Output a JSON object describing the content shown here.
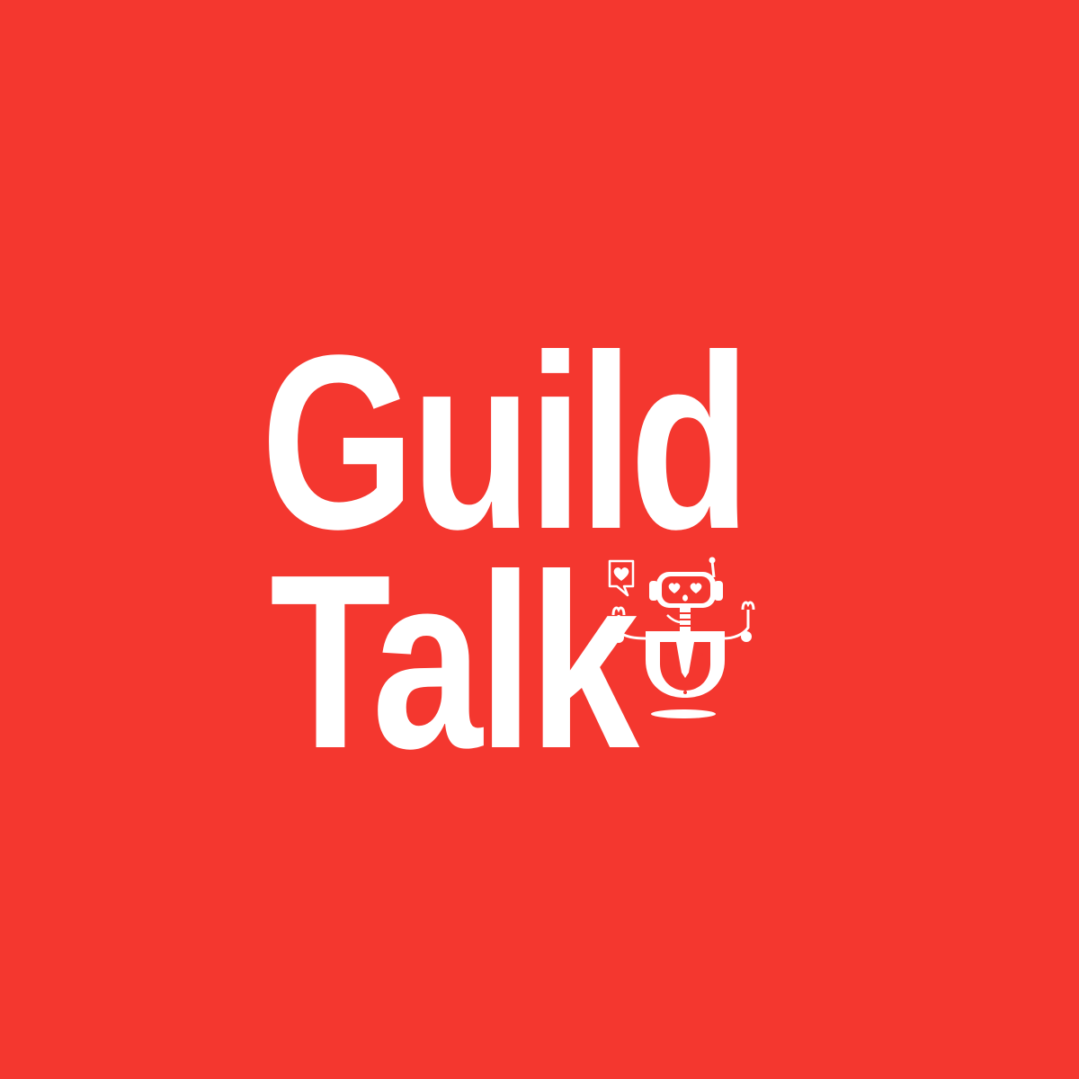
{
  "background_color": "#f4372f",
  "foreground_color": "#ffffff",
  "logo": {
    "line1": "Guild",
    "line2": "Talk"
  },
  "mascot": {
    "icon": "robot-mascot-icon",
    "speech_icon": "heart-speech-bubble-icon"
  }
}
